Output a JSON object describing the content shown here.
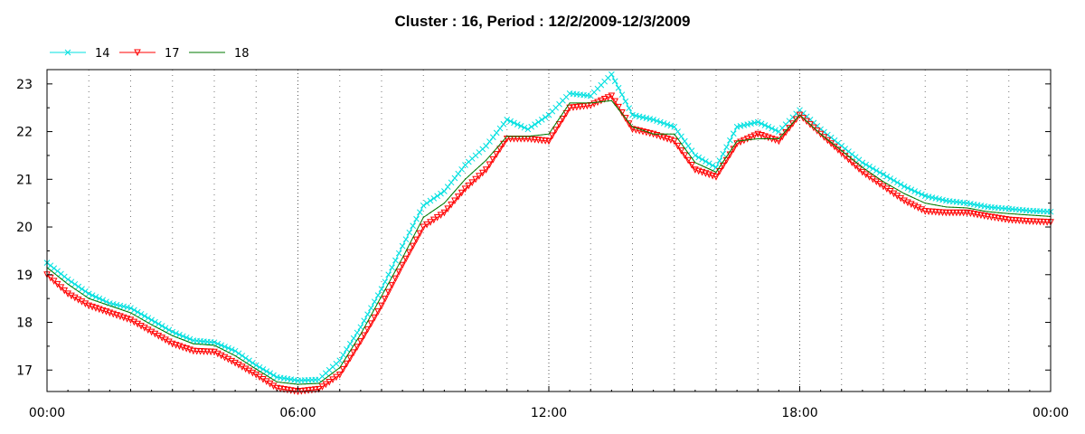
{
  "chart_data": {
    "type": "line",
    "title": "Cluster : 16, Period : 12/2/2009-12/3/2009",
    "xlabel": "",
    "ylabel": "",
    "x_ticks": [
      "00:00",
      "06:00",
      "12:00",
      "18:00",
      "00:00"
    ],
    "y_ticks": [
      "17",
      "18",
      "19",
      "20",
      "21",
      "22",
      "23"
    ],
    "xlim": [
      "00:00",
      "24:00"
    ],
    "ylim": [
      16.55,
      23.3
    ],
    "grid": true,
    "legend_position": "top-left",
    "series": [
      {
        "name": "14",
        "color": "#00e0e0",
        "marker": "x",
        "x": [
          "00:00",
          "00:30",
          "01:00",
          "01:30",
          "02:00",
          "02:30",
          "03:00",
          "03:30",
          "04:00",
          "04:30",
          "05:00",
          "05:30",
          "06:00",
          "06:30",
          "07:00",
          "07:30",
          "08:00",
          "08:30",
          "09:00",
          "09:30",
          "10:00",
          "10:30",
          "11:00",
          "11:30",
          "12:00",
          "12:30",
          "13:00",
          "13:30",
          "14:00",
          "14:30",
          "15:00",
          "15:30",
          "16:00",
          "16:30",
          "17:00",
          "17:30",
          "18:00",
          "18:30",
          "19:00",
          "19:30",
          "20:00",
          "20:30",
          "21:00",
          "21:30",
          "22:00",
          "22:30",
          "23:00",
          "23:30",
          "24:00"
        ],
        "values": [
          19.25,
          18.9,
          18.6,
          18.4,
          18.3,
          18.05,
          17.8,
          17.62,
          17.58,
          17.4,
          17.1,
          16.85,
          16.78,
          16.8,
          17.2,
          17.9,
          18.7,
          19.6,
          20.45,
          20.75,
          21.3,
          21.7,
          22.25,
          22.05,
          22.35,
          22.8,
          22.75,
          23.2,
          22.35,
          22.25,
          22.1,
          21.5,
          21.25,
          22.1,
          22.2,
          22.0,
          22.45,
          22.05,
          21.7,
          21.35,
          21.1,
          20.85,
          20.65,
          20.55,
          20.5,
          20.42,
          20.38,
          20.34,
          20.32
        ]
      },
      {
        "name": "17",
        "color": "#ff0000",
        "marker": "triangle-down",
        "x": [
          "00:00",
          "00:30",
          "01:00",
          "01:30",
          "02:00",
          "02:30",
          "03:00",
          "03:30",
          "04:00",
          "04:30",
          "05:00",
          "05:30",
          "06:00",
          "06:30",
          "07:00",
          "07:30",
          "08:00",
          "08:30",
          "09:00",
          "09:30",
          "10:00",
          "10:30",
          "11:00",
          "11:30",
          "12:00",
          "12:30",
          "13:00",
          "13:30",
          "14:00",
          "14:30",
          "15:00",
          "15:30",
          "16:00",
          "16:30",
          "17:00",
          "17:30",
          "18:00",
          "18:30",
          "19:00",
          "19:30",
          "20:00",
          "20:30",
          "21:00",
          "21:30",
          "22:00",
          "22:30",
          "23:00",
          "23:30",
          "24:00"
        ],
        "values": [
          19.0,
          18.6,
          18.35,
          18.2,
          18.05,
          17.8,
          17.55,
          17.4,
          17.38,
          17.15,
          16.9,
          16.62,
          16.55,
          16.6,
          16.9,
          17.6,
          18.35,
          19.2,
          20.0,
          20.3,
          20.8,
          21.2,
          21.85,
          21.85,
          21.8,
          22.5,
          22.55,
          22.75,
          22.05,
          21.95,
          21.8,
          21.2,
          21.05,
          21.75,
          21.95,
          21.8,
          22.35,
          21.95,
          21.55,
          21.15,
          20.85,
          20.55,
          20.33,
          20.3,
          20.3,
          20.22,
          20.15,
          20.12,
          20.1
        ]
      },
      {
        "name": "18",
        "color": "#007a00",
        "marker": "none",
        "x": [
          "00:00",
          "00:30",
          "01:00",
          "01:30",
          "02:00",
          "02:30",
          "03:00",
          "03:30",
          "04:00",
          "04:30",
          "05:00",
          "05:30",
          "06:00",
          "06:30",
          "07:00",
          "07:30",
          "08:00",
          "08:30",
          "09:00",
          "09:30",
          "10:00",
          "10:30",
          "11:00",
          "11:30",
          "12:00",
          "12:30",
          "13:00",
          "13:30",
          "14:00",
          "14:30",
          "15:00",
          "15:30",
          "16:00",
          "16:30",
          "17:00",
          "17:30",
          "18:00",
          "18:30",
          "19:00",
          "19:30",
          "20:00",
          "20:30",
          "21:00",
          "21:30",
          "22:00",
          "22:30",
          "23:00",
          "23:30",
          "24:00"
        ],
        "values": [
          19.15,
          18.8,
          18.5,
          18.35,
          18.2,
          17.95,
          17.72,
          17.55,
          17.52,
          17.3,
          17.02,
          16.75,
          16.7,
          16.72,
          17.05,
          17.75,
          18.55,
          19.35,
          20.2,
          20.5,
          21.0,
          21.4,
          21.9,
          21.9,
          21.95,
          22.6,
          22.6,
          22.65,
          22.1,
          21.95,
          21.95,
          21.35,
          21.15,
          21.8,
          21.85,
          21.85,
          22.35,
          21.95,
          21.6,
          21.25,
          20.95,
          20.7,
          20.5,
          20.42,
          20.4,
          20.32,
          20.28,
          20.25,
          20.22
        ]
      }
    ]
  }
}
